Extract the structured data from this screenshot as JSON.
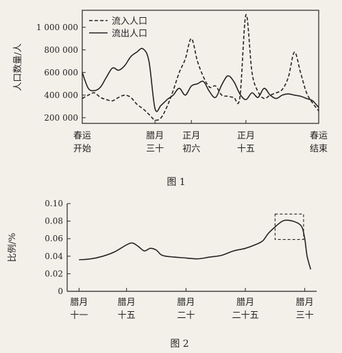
{
  "chart_data": [
    {
      "type": "line",
      "ylabel": "人口数量/人",
      "caption": "图 1",
      "ylim": [
        150000,
        1150000
      ],
      "yticks": [
        200000,
        400000,
        600000,
        800000,
        1000000
      ],
      "ytick_labels": [
        "200 000",
        "400 000",
        "600 000",
        "800 000",
        "1 000 000"
      ],
      "x_categories": [
        {
          "x": 0,
          "lines": [
            "春运",
            "开始"
          ]
        },
        {
          "x": 12,
          "lines": [
            "腊月",
            "三十"
          ]
        },
        {
          "x": 18,
          "lines": [
            "正月",
            "初六"
          ]
        },
        {
          "x": 27,
          "lines": [
            "正月",
            "十五"
          ]
        },
        {
          "x": 39,
          "lines": [
            "春运",
            "结束"
          ]
        }
      ],
      "xlim": [
        0,
        39
      ],
      "legend": "top-left",
      "series": [
        {
          "name": "流入人口",
          "style": "dashed",
          "x": [
            0,
            1,
            2,
            3,
            4,
            5,
            6,
            7,
            8,
            9,
            10,
            11,
            12,
            13,
            14,
            15,
            16,
            17,
            18,
            19,
            20,
            21,
            22,
            23,
            24,
            25,
            26,
            27,
            28,
            29,
            30,
            31,
            32,
            33,
            34,
            35,
            36,
            37,
            38,
            39
          ],
          "values": [
            370000,
            400000,
            420000,
            380000,
            360000,
            350000,
            380000,
            400000,
            380000,
            320000,
            280000,
            230000,
            180000,
            200000,
            300000,
            440000,
            600000,
            720000,
            900000,
            700000,
            560000,
            470000,
            480000,
            400000,
            390000,
            380000,
            380000,
            1110000,
            600000,
            430000,
            370000,
            400000,
            420000,
            450000,
            560000,
            780000,
            600000,
            420000,
            330000,
            260000
          ]
        },
        {
          "name": "流出人口",
          "style": "solid",
          "x": [
            0,
            1,
            2,
            3,
            4,
            5,
            6,
            7,
            8,
            9,
            10,
            11,
            12,
            13,
            14,
            15,
            16,
            17,
            18,
            19,
            20,
            21,
            22,
            23,
            24,
            25,
            26,
            27,
            28,
            29,
            30,
            31,
            32,
            33,
            34,
            35,
            36,
            37,
            38,
            39
          ],
          "values": [
            600000,
            460000,
            440000,
            470000,
            560000,
            640000,
            620000,
            660000,
            740000,
            780000,
            810000,
            700000,
            280000,
            310000,
            360000,
            400000,
            460000,
            400000,
            480000,
            500000,
            520000,
            430000,
            380000,
            490000,
            570000,
            520000,
            410000,
            360000,
            420000,
            380000,
            460000,
            400000,
            370000,
            400000,
            410000,
            400000,
            390000,
            370000,
            350000,
            290000
          ]
        }
      ]
    },
    {
      "type": "line",
      "ylabel": "比例/%",
      "caption": "图 2",
      "ylim": [
        0,
        0.1
      ],
      "yticks": [
        0,
        0.02,
        0.04,
        0.06,
        0.08,
        0.1
      ],
      "ytick_labels": [
        "0",
        "0.02",
        "0.04",
        "0.06",
        "0.08",
        "0.10"
      ],
      "x_categories": [
        {
          "x": 11,
          "lines": [
            "腊月",
            "十一"
          ]
        },
        {
          "x": 15,
          "lines": [
            "腊月",
            "十五"
          ]
        },
        {
          "x": 20,
          "lines": [
            "腊月",
            "二十"
          ]
        },
        {
          "x": 25,
          "lines": [
            "腊月",
            "二十五"
          ]
        },
        {
          "x": 30,
          "lines": [
            "腊月",
            "三十"
          ]
        }
      ],
      "xlim": [
        10,
        31
      ],
      "highlight_box": {
        "x": [
          27.5,
          29.9
        ],
        "y": [
          0.059,
          0.088
        ]
      },
      "series": [
        {
          "name": "",
          "style": "solid",
          "x": [
            11,
            12,
            13,
            14,
            15,
            15.5,
            16,
            16.5,
            17,
            17.5,
            18,
            19,
            20,
            21,
            22,
            23,
            24,
            25,
            26,
            26.5,
            27,
            28,
            28.5,
            29,
            29.5,
            29.8,
            30,
            30.2,
            30.5
          ],
          "values": [
            0.036,
            0.037,
            0.04,
            0.045,
            0.053,
            0.055,
            0.051,
            0.046,
            0.049,
            0.047,
            0.041,
            0.039,
            0.038,
            0.037,
            0.039,
            0.041,
            0.046,
            0.049,
            0.054,
            0.058,
            0.067,
            0.079,
            0.081,
            0.08,
            0.077,
            0.072,
            0.06,
            0.04,
            0.025
          ]
        }
      ]
    }
  ]
}
